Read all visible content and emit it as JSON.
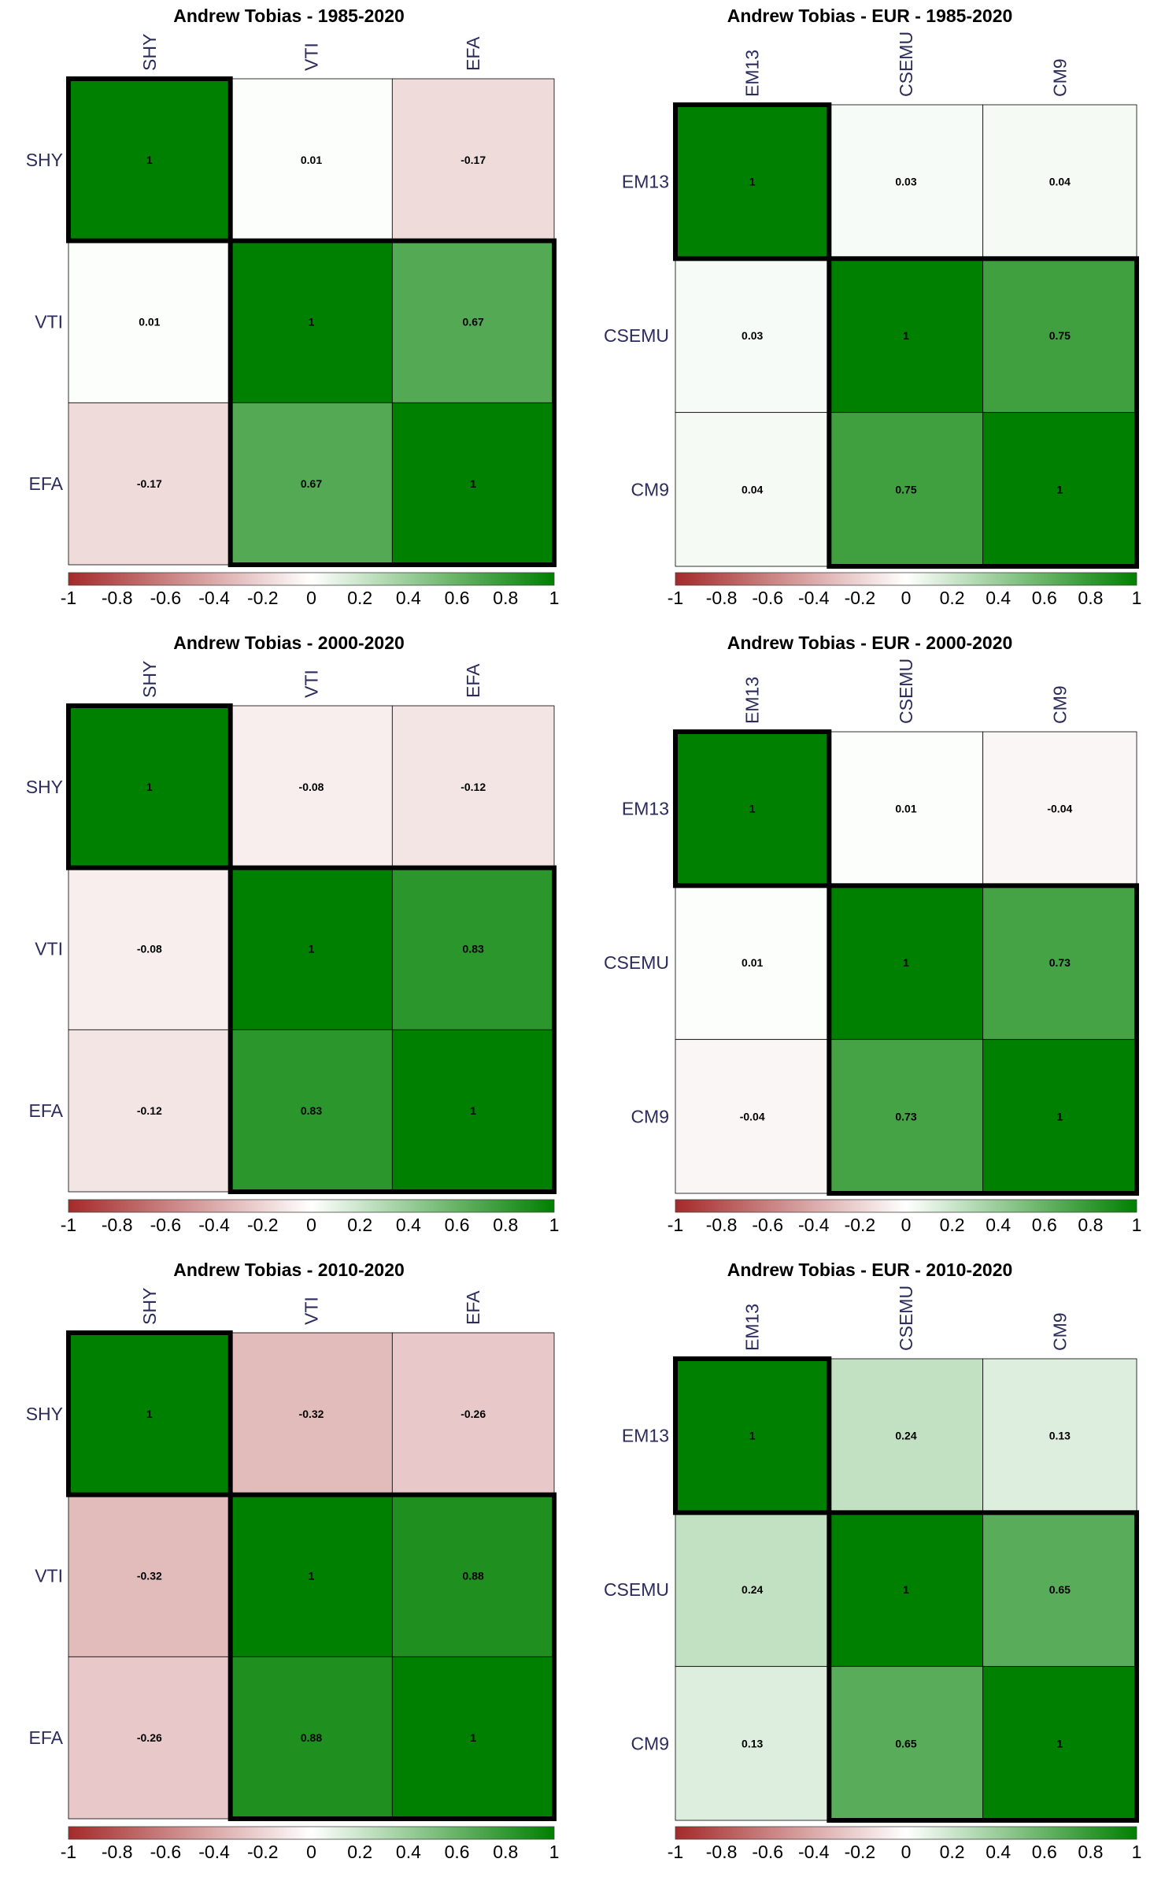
{
  "figure": {
    "colorbar": {
      "ticks": [
        "-1",
        "-0.8",
        "-0.6",
        "-0.4",
        "-0.2",
        "0",
        "0.2",
        "0.4",
        "0.6",
        "0.8",
        "1"
      ],
      "colors": {
        "negative": "#a52a2a",
        "zero": "#ffffff",
        "positive": "#008000"
      }
    },
    "text_color_labels": "#2b2b5c",
    "cluster_border_color": "#000000"
  },
  "chart_data": [
    {
      "type": "heatmap",
      "title": "Andrew Tobias - 1985-2020",
      "labels": [
        "SHY",
        "VTI",
        "EFA"
      ],
      "matrix": [
        [
          1,
          0.01,
          -0.17
        ],
        [
          0.01,
          1,
          0.67
        ],
        [
          -0.17,
          0.67,
          1
        ]
      ],
      "cells": [
        [
          "1",
          "0.01",
          "-0.17"
        ],
        [
          "0.01",
          "1",
          "0.67"
        ],
        [
          "-0.17",
          "0.67",
          "1"
        ]
      ],
      "clusters": [
        [
          0,
          0
        ],
        [
          1,
          2
        ]
      ],
      "color_range": [
        -1,
        1
      ],
      "legend": "bottom"
    },
    {
      "type": "heatmap",
      "title": "Andrew Tobias - EUR - 1985-2020",
      "labels": [
        "EM13",
        "CSEMU",
        "CM9"
      ],
      "matrix": [
        [
          1,
          0.03,
          0.04
        ],
        [
          0.03,
          1,
          0.75
        ],
        [
          0.04,
          0.75,
          1
        ]
      ],
      "cells": [
        [
          "1",
          "0.03",
          "0.04"
        ],
        [
          "0.03",
          "1",
          "0.75"
        ],
        [
          "0.04",
          "0.75",
          "1"
        ]
      ],
      "clusters": [
        [
          0,
          0
        ],
        [
          1,
          2
        ]
      ],
      "color_range": [
        -1,
        1
      ],
      "legend": "bottom"
    },
    {
      "type": "heatmap",
      "title": "Andrew Tobias - 2000-2020",
      "labels": [
        "SHY",
        "VTI",
        "EFA"
      ],
      "matrix": [
        [
          1,
          -0.08,
          -0.12
        ],
        [
          -0.08,
          1,
          0.83
        ],
        [
          -0.12,
          0.83,
          1
        ]
      ],
      "cells": [
        [
          "1",
          "-0.08",
          "-0.12"
        ],
        [
          "-0.08",
          "1",
          "0.83"
        ],
        [
          "-0.12",
          "0.83",
          "1"
        ]
      ],
      "clusters": [
        [
          0,
          0
        ],
        [
          1,
          2
        ]
      ],
      "color_range": [
        -1,
        1
      ],
      "legend": "bottom"
    },
    {
      "type": "heatmap",
      "title": "Andrew Tobias - EUR - 2000-2020",
      "labels": [
        "EM13",
        "CSEMU",
        "CM9"
      ],
      "matrix": [
        [
          1,
          0.01,
          -0.04
        ],
        [
          0.01,
          1,
          0.73
        ],
        [
          -0.04,
          0.73,
          1
        ]
      ],
      "cells": [
        [
          "1",
          "0.01",
          "-0.04"
        ],
        [
          "0.01",
          "1",
          "0.73"
        ],
        [
          "-0.04",
          "0.73",
          "1"
        ]
      ],
      "clusters": [
        [
          0,
          0
        ],
        [
          1,
          2
        ]
      ],
      "color_range": [
        -1,
        1
      ],
      "legend": "bottom"
    },
    {
      "type": "heatmap",
      "title": "Andrew Tobias - 2010-2020",
      "labels": [
        "SHY",
        "VTI",
        "EFA"
      ],
      "matrix": [
        [
          1,
          -0.32,
          -0.26
        ],
        [
          -0.32,
          1,
          0.88
        ],
        [
          -0.26,
          0.88,
          1
        ]
      ],
      "cells": [
        [
          "1",
          "-0.32",
          "-0.26"
        ],
        [
          "-0.32",
          "1",
          "0.88"
        ],
        [
          "-0.26",
          "0.88",
          "1"
        ]
      ],
      "clusters": [
        [
          0,
          0
        ],
        [
          1,
          2
        ]
      ],
      "color_range": [
        -1,
        1
      ],
      "legend": "bottom"
    },
    {
      "type": "heatmap",
      "title": "Andrew Tobias - EUR - 2010-2020",
      "labels": [
        "EM13",
        "CSEMU",
        "CM9"
      ],
      "matrix": [
        [
          1,
          0.24,
          0.13
        ],
        [
          0.24,
          1,
          0.65
        ],
        [
          0.13,
          0.65,
          1
        ]
      ],
      "cells": [
        [
          "1",
          "0.24",
          "0.13"
        ],
        [
          "0.24",
          "1",
          "0.65"
        ],
        [
          "0.13",
          "0.65",
          "1"
        ]
      ],
      "clusters": [
        [
          0,
          0
        ],
        [
          1,
          2
        ]
      ],
      "color_range": [
        -1,
        1
      ],
      "legend": "bottom"
    }
  ]
}
